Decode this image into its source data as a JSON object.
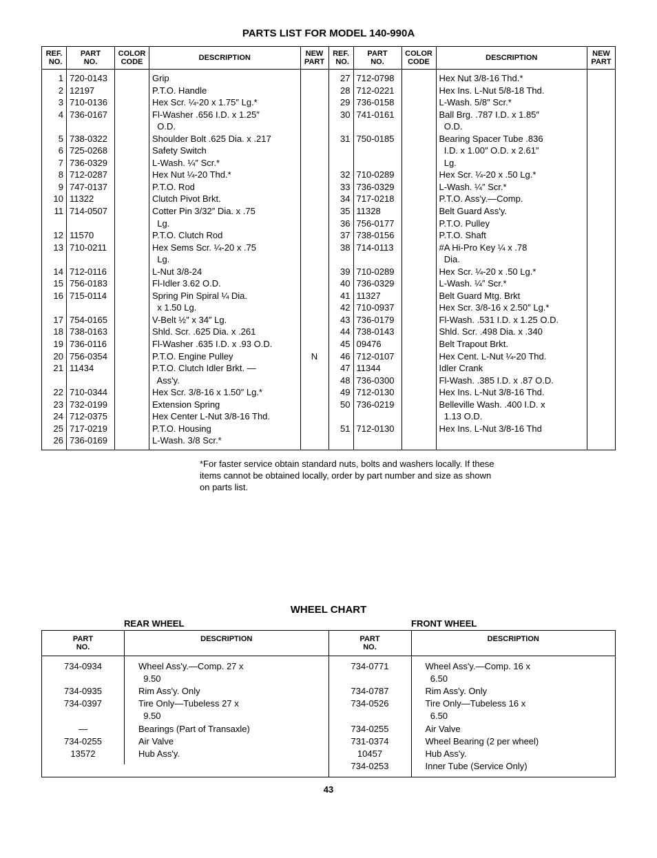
{
  "title": "PARTS LIST FOR MODEL 140-990A",
  "headers": {
    "ref": "REF.\nNO.",
    "part": "PART\nNO.",
    "color": "COLOR\nCODE",
    "desc": "DESCRIPTION",
    "new": "NEW\nPART"
  },
  "left": {
    "ref": [
      "1",
      "2",
      "3",
      "4",
      "",
      "5",
      "6",
      "7",
      "8",
      "9",
      "10",
      "11",
      "",
      "12",
      "13",
      "",
      "14",
      "15",
      "16",
      "",
      "17",
      "18",
      "19",
      "20",
      "21",
      "",
      "22",
      "23",
      "24",
      "25",
      "26"
    ],
    "part": [
      "720-0143",
      "12197",
      "710-0136",
      "736-0167",
      "",
      "738-0322",
      "725-0268",
      "736-0329",
      "712-0287",
      "747-0137",
      "11322",
      "714-0507",
      "",
      "11570",
      "710-0211",
      "",
      "712-0116",
      "756-0183",
      "715-0114",
      "",
      "754-0165",
      "738-0163",
      "736-0116",
      "756-0354",
      "11434",
      "",
      "710-0344",
      "732-0199",
      "712-0375",
      "717-0219",
      "736-0169"
    ],
    "color": [
      "",
      "",
      "",
      "",
      "",
      "",
      "",
      "",
      "",
      "",
      "",
      "",
      "",
      "",
      "",
      "",
      "",
      "",
      "",
      "",
      "",
      "",
      "",
      "",
      "",
      "",
      "",
      "",
      "",
      "",
      ""
    ],
    "desc": [
      "Grip",
      "P.T.O. Handle",
      "Hex Scr. ¼-20 x 1.75″ Lg.*",
      "Fl-Washer .656 I.D. x 1.25″",
      "  O.D.",
      "Shoulder Bolt .625 Dia. x .217",
      "Safety Switch",
      "L-Wash. ¼″ Scr.*",
      "Hex Nut ¼-20 Thd.*",
      "P.T.O. Rod",
      "Clutch Pivot Brkt.",
      "Cotter Pin 3/32″ Dia. x .75",
      "  Lg.",
      "P.T.O. Clutch Rod",
      "Hex Sems Scr. ¼-20 x .75",
      "  Lg.",
      "L-Nut 3/8-24",
      "Fl-Idler 3.62 O.D.",
      "Spring Pin Spiral ¼ Dia.",
      "  x 1.50 Lg.",
      "V-Belt ½″ x 34″ Lg.",
      "Shld. Scr. .625 Dia. x .261",
      "Fl-Washer .635 I.D. x .93 O.D.",
      "P.T.O. Engine Pulley",
      "P.T.O. Clutch Idler Brkt. —",
      "  Ass'y.",
      "Hex Scr. 3/8-16 x 1.50″ Lg.*",
      "Extension Spring",
      "Hex Center L-Nut 3/8-16 Thd.",
      "P.T.O. Housing",
      "L-Wash. 3/8 Scr.*"
    ],
    "new": [
      "",
      "",
      "",
      "",
      "",
      "",
      "",
      "",
      "",
      "",
      "",
      "",
      "",
      "",
      "",
      "",
      "",
      "",
      "",
      "",
      "",
      "",
      "",
      "N",
      "",
      "",
      "",
      "",
      "",
      "",
      ""
    ]
  },
  "right": {
    "ref": [
      "27",
      "28",
      "29",
      "30",
      "",
      "31",
      "",
      "",
      "32",
      "33",
      "34",
      "35",
      "36",
      "37",
      "38",
      "",
      "39",
      "40",
      "41",
      "42",
      "43",
      "44",
      "45",
      "46",
      "47",
      "48",
      "49",
      "50",
      "",
      "51"
    ],
    "part": [
      "712-0798",
      "712-0221",
      "736-0158",
      "741-0161",
      "",
      "750-0185",
      "",
      "",
      "710-0289",
      "736-0329",
      "717-0218",
      "11328",
      "756-0177",
      "738-0156",
      "714-0113",
      "",
      "710-0289",
      "736-0329",
      "11327",
      "710-0937",
      "736-0179",
      "738-0143",
      "09476",
      "712-0107",
      "11344",
      "736-0300",
      "712-0130",
      "736-0219",
      "",
      "712-0130"
    ],
    "color": [
      "",
      "",
      "",
      "",
      "",
      "",
      "",
      "",
      "",
      "",
      "",
      "",
      "",
      "",
      "",
      "",
      "",
      "",
      "",
      "",
      "",
      "",
      "",
      "",
      "",
      "",
      "",
      "",
      "",
      ""
    ],
    "desc": [
      "Hex Nut 3/8-16 Thd.*",
      "Hex Ins. L-Nut 5/8-18 Thd.",
      "L-Wash. 5/8″ Scr.*",
      "Ball Brg. .787 I.D. x 1.85″",
      "  O.D.",
      "Bearing Spacer Tube .836",
      "  I.D. x 1.00″ O.D. x 2.61″",
      "  Lg.",
      "Hex Scr. ¼-20 x .50 Lg.*",
      "L-Wash. ¼″ Scr.*",
      "P.T.O. Ass'y.—Comp.",
      "Belt Guard Ass'y.",
      "P.T.O. Pulley",
      "P.T.O. Shaft",
      "#A Hi-Pro Key ¼ x .78",
      "  Dia.",
      "Hex Scr. ¼-20 x .50 Lg.*",
      "L-Wash. ¼″ Scr.*",
      "Belt Guard Mtg. Brkt",
      "Hex Scr. 3/8-16 x 2.50″ Lg.*",
      "Fl-Wash. .531 I.D. x 1.25 O.D.",
      "Shld. Scr. .498 Dia. x .340",
      "Belt Trapout Brkt.",
      "Hex Cent. L-Nut ¼-20 Thd.",
      "Idler Crank",
      "Fl-Wash. .385 I.D. x .87 O.D.",
      "Hex Ins. L-Nut 3/8-16 Thd.",
      "Belleville Wash. .400 I.D. x",
      "  1.13 O.D.",
      "Hex Ins. L-Nut 3/8-16 Thd"
    ],
    "new": [
      "",
      "",
      "",
      "",
      "",
      "",
      "",
      "",
      "",
      "",
      "",
      "",
      "",
      "",
      "",
      "",
      "",
      "",
      "",
      "",
      "",
      "",
      "",
      "",
      "",
      "",
      "",
      "",
      "",
      ""
    ]
  },
  "footnote": "*For faster service obtain standard nuts, bolts and washers locally. If these items cannot be obtained locally, order by part number and size as shown on parts list.",
  "wheel_title": "WHEEL CHART",
  "wheel_sub_rear": "REAR WHEEL",
  "wheel_sub_front": "FRONT WHEEL",
  "wheel_headers": {
    "part": "PART\nNO.",
    "desc": "DESCRIPTION"
  },
  "rear": {
    "part": [
      "734-0934",
      "",
      "734-0935",
      "734-0397",
      "",
      "—",
      "734-0255",
      "13572"
    ],
    "desc": [
      "Wheel Ass'y.—Comp. 27 x",
      "  9.50",
      "Rim Ass'y. Only",
      "Tire Only—Tubeless 27 x",
      "  9.50",
      "Bearings (Part of Transaxle)",
      "Air Valve",
      "Hub Ass'y."
    ]
  },
  "front": {
    "part": [
      "734-0771",
      "",
      "734-0787",
      "734-0526",
      "",
      "734-0255",
      "731-0374",
      "10457",
      "734-0253"
    ],
    "desc": [
      "Wheel Ass'y.—Comp. 16 x",
      "  6.50",
      "Rim Ass'y. Only",
      "Tire Only—Tubeless 16 x",
      "  6.50",
      "Air Valve",
      "Wheel Bearing (2 per wheel)",
      "Hub Ass'y.",
      "Inner Tube (Service Only)"
    ]
  },
  "page_number": "43"
}
